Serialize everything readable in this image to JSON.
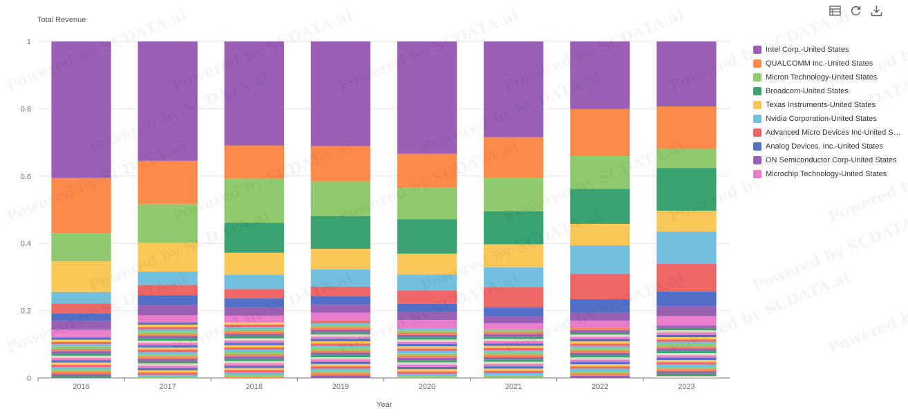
{
  "watermark": "Powered by SCDATA.ai",
  "toolbar": {
    "icons": [
      "table-icon",
      "refresh-icon",
      "download-icon"
    ]
  },
  "chart_data": {
    "type": "bar",
    "stacked": true,
    "normalized": true,
    "title": "Total Revenue",
    "xlabel": "Year",
    "ylabel": "",
    "ylim": [
      0,
      1
    ],
    "yticks": [
      0,
      0.2,
      0.4,
      0.6,
      0.8,
      1
    ],
    "grid": true,
    "legend_position": "right",
    "categories": [
      "2016",
      "2017",
      "2018",
      "2019",
      "2020",
      "2021",
      "2022",
      "2023"
    ],
    "series": [
      {
        "name": "Intel Corp.-United States",
        "color": "#9b5fb5",
        "values": [
          0.406,
          0.355,
          0.309,
          0.311,
          0.334,
          0.285,
          0.201,
          0.193
        ]
      },
      {
        "name": "QUALCOMM Inc.-United States",
        "color": "#fc8b4b",
        "values": [
          0.163,
          0.128,
          0.099,
          0.105,
          0.101,
          0.122,
          0.14,
          0.127
        ]
      },
      {
        "name": "Micron Technology-United States",
        "color": "#8fcb6e",
        "values": [
          0.084,
          0.116,
          0.131,
          0.103,
          0.093,
          0.098,
          0.097,
          0.056
        ]
      },
      {
        "name": "Broadcom-United States",
        "color": "#3ba272",
        "values": [
          0.0,
          0.0,
          0.089,
          0.097,
          0.103,
          0.098,
          0.104,
          0.127
        ]
      },
      {
        "name": "Texas Instruments-United States",
        "color": "#fac858",
        "values": [
          0.092,
          0.085,
          0.066,
          0.062,
          0.062,
          0.068,
          0.064,
          0.062
        ]
      },
      {
        "name": "Nvidia Corporation-United States",
        "color": "#73c0de",
        "values": [
          0.034,
          0.04,
          0.042,
          0.051,
          0.047,
          0.06,
          0.085,
          0.096
        ]
      },
      {
        "name": "Advanced Micro Devices Inc-United States",
        "color": "#ee6666",
        "values": [
          0.03,
          0.03,
          0.028,
          0.028,
          0.04,
          0.059,
          0.075,
          0.082
        ]
      },
      {
        "name": "Analog Devices, Inc.-United States",
        "color": "#5470c6",
        "values": [
          0.022,
          0.029,
          0.027,
          0.025,
          0.024,
          0.027,
          0.04,
          0.044
        ]
      },
      {
        "name": "ON Semiconductor Corp-United States",
        "color": "#9a60b4",
        "values": [
          0.026,
          0.031,
          0.024,
          0.024,
          0.024,
          0.021,
          0.024,
          0.029
        ]
      },
      {
        "name": "Microchip Technology-United States",
        "color": "#ea7ccc",
        "values": [
          0.016,
          0.021,
          0.02,
          0.024,
          0.024,
          0.019,
          0.021,
          0.029
        ]
      }
    ],
    "other_color": "#e9e4d6"
  }
}
